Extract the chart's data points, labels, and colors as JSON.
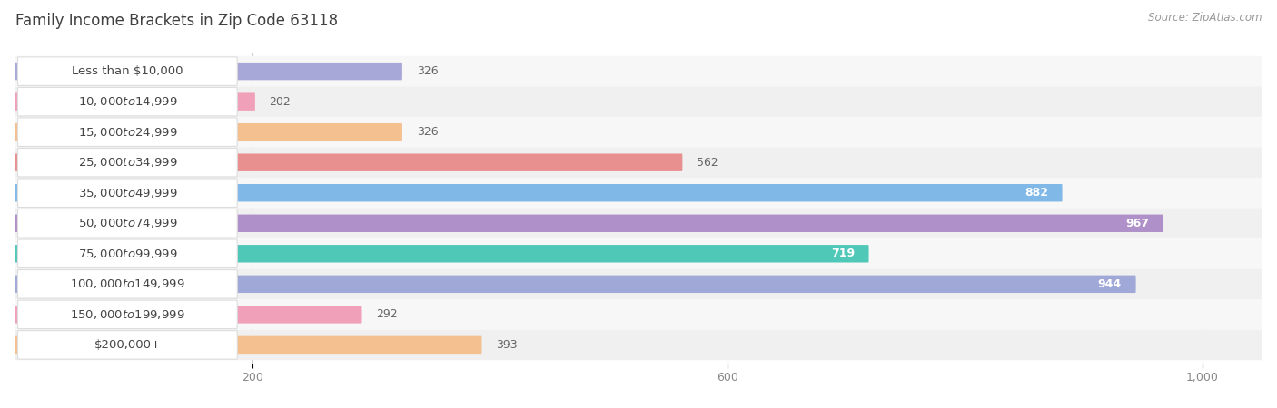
{
  "title": "Family Income Brackets in Zip Code 63118",
  "source": "Source: ZipAtlas.com",
  "categories": [
    "Less than $10,000",
    "$10,000 to $14,999",
    "$15,000 to $24,999",
    "$25,000 to $34,999",
    "$35,000 to $49,999",
    "$50,000 to $74,999",
    "$75,000 to $99,999",
    "$100,000 to $149,999",
    "$150,000 to $199,999",
    "$200,000+"
  ],
  "values": [
    326,
    202,
    326,
    562,
    882,
    967,
    719,
    944,
    292,
    393
  ],
  "bar_colors": [
    "#a8a8d8",
    "#f0a0b8",
    "#f5c090",
    "#e89090",
    "#80b8e8",
    "#b090c8",
    "#50c8b8",
    "#a0a8d8",
    "#f0a0b8",
    "#f5c090"
  ],
  "bg_stripe_colors": [
    "#f5f5f5",
    "#eeeeee"
  ],
  "xlim_max": 1050,
  "xticks": [
    200,
    600,
    1000
  ],
  "xticklabels": [
    "200",
    "600",
    "1,000"
  ],
  "title_fontsize": 12,
  "source_fontsize": 8.5,
  "label_fontsize": 9.5,
  "value_fontsize": 9,
  "background_color": "#ffffff",
  "label_text_color": "#444444",
  "value_color_inside": "#ffffff",
  "value_color_outside": "#666666",
  "inside_threshold": 650,
  "grid_color": "#cccccc",
  "tick_color": "#888888"
}
